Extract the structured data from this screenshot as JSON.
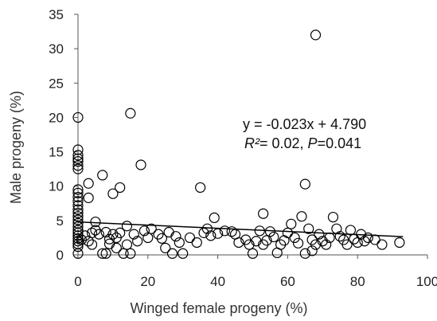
{
  "chart_data": {
    "type": "scatter",
    "title": "",
    "xlabel": "Winged female progeny (%)",
    "ylabel": "Male progeny (%)",
    "xlim": [
      0,
      100
    ],
    "ylim": [
      0,
      35
    ],
    "x_ticks": [
      0,
      20,
      40,
      60,
      80,
      100
    ],
    "y_ticks": [
      0,
      5,
      10,
      15,
      20,
      25,
      30,
      35
    ],
    "grid": false,
    "legend": "none",
    "marker": "open-circle",
    "marker_color": "#000000",
    "trendline": {
      "slope": -0.023,
      "intercept": 4.79,
      "x_range": [
        0,
        93
      ]
    },
    "annotation": {
      "equation": "y = -0.023x + 4.790",
      "r2_label": "R²",
      "r2_value": "= 0.02,",
      "p_label": "P",
      "p_value": "=0.041"
    },
    "points": [
      [
        0,
        20
      ],
      [
        0,
        15.3
      ],
      [
        0,
        14.5
      ],
      [
        0,
        14.0
      ],
      [
        0,
        13.6
      ],
      [
        0,
        13.0
      ],
      [
        0,
        12.5
      ],
      [
        0,
        9.5
      ],
      [
        0,
        9.0
      ],
      [
        0,
        8.4
      ],
      [
        0,
        7.8
      ],
      [
        0,
        7.2
      ],
      [
        0,
        6.6
      ],
      [
        0,
        6.1
      ],
      [
        0,
        5.6
      ],
      [
        0,
        5.1
      ],
      [
        0,
        4.6
      ],
      [
        0,
        4.1
      ],
      [
        0,
        3.6
      ],
      [
        0,
        3.2
      ],
      [
        0,
        2.8
      ],
      [
        0,
        2.4
      ],
      [
        0,
        2.0
      ],
      [
        0,
        1.6
      ],
      [
        0,
        1.2
      ],
      [
        0,
        0.2
      ],
      [
        1,
        2.2
      ],
      [
        2,
        2.8
      ],
      [
        3,
        2.0
      ],
      [
        3,
        8.3
      ],
      [
        3,
        10.4
      ],
      [
        4,
        1.5
      ],
      [
        4,
        3.2
      ],
      [
        5,
        4.8
      ],
      [
        5,
        3.6
      ],
      [
        6,
        3.0
      ],
      [
        7,
        11.6
      ],
      [
        7,
        0.2
      ],
      [
        8,
        3.3
      ],
      [
        8,
        0.2
      ],
      [
        9,
        2.3
      ],
      [
        9,
        1.6
      ],
      [
        10,
        8.9
      ],
      [
        10,
        3.0
      ],
      [
        11,
        2.5
      ],
      [
        11,
        1.0
      ],
      [
        12,
        9.8
      ],
      [
        12,
        3.2
      ],
      [
        13,
        0.2
      ],
      [
        14,
        4.2
      ],
      [
        14,
        1.5
      ],
      [
        15,
        20.6
      ],
      [
        15,
        0.2
      ],
      [
        16,
        3.0
      ],
      [
        17,
        2.0
      ],
      [
        18,
        13.1
      ],
      [
        19,
        3.5
      ],
      [
        20,
        2.5
      ],
      [
        21,
        3.8
      ],
      [
        23,
        3.0
      ],
      [
        24,
        2.4
      ],
      [
        25,
        1.0
      ],
      [
        26,
        3.3
      ],
      [
        27,
        0.2
      ],
      [
        28,
        2.7
      ],
      [
        29,
        1.8
      ],
      [
        30,
        0.2
      ],
      [
        32,
        2.5
      ],
      [
        34,
        1.8
      ],
      [
        35,
        9.8
      ],
      [
        36,
        3.2
      ],
      [
        37,
        3.8
      ],
      [
        38,
        2.8
      ],
      [
        39,
        5.4
      ],
      [
        40,
        3.1
      ],
      [
        42,
        3.5
      ],
      [
        44,
        3.4
      ],
      [
        45,
        3.0
      ],
      [
        46,
        1.8
      ],
      [
        48,
        2.2
      ],
      [
        49,
        1.5
      ],
      [
        50,
        0.2
      ],
      [
        51,
        2.0
      ],
      [
        52,
        3.5
      ],
      [
        53,
        6.0
      ],
      [
        53,
        1.5
      ],
      [
        54,
        2.1
      ],
      [
        55,
        3.4
      ],
      [
        56,
        2.6
      ],
      [
        57,
        0.3
      ],
      [
        58,
        1.5
      ],
      [
        59,
        2.1
      ],
      [
        60,
        3.2
      ],
      [
        61,
        4.5
      ],
      [
        62,
        2.5
      ],
      [
        63,
        1.7
      ],
      [
        64,
        5.6
      ],
      [
        65,
        10.3
      ],
      [
        65,
        0.2
      ],
      [
        66,
        3.8
      ],
      [
        67,
        2.2
      ],
      [
        67,
        0.6
      ],
      [
        68,
        32
      ],
      [
        68,
        1.5
      ],
      [
        69,
        3.0
      ],
      [
        70,
        2.0
      ],
      [
        71,
        1.5
      ],
      [
        72,
        2.5
      ],
      [
        73,
        5.5
      ],
      [
        74,
        3.8
      ],
      [
        75,
        2.7
      ],
      [
        76,
        2.2
      ],
      [
        77,
        1.5
      ],
      [
        78,
        3.6
      ],
      [
        79,
        2.3
      ],
      [
        80,
        1.8
      ],
      [
        81,
        3.0
      ],
      [
        82,
        2.0
      ],
      [
        83,
        2.5
      ],
      [
        85,
        2.2
      ],
      [
        87,
        1.5
      ],
      [
        92,
        1.8
      ]
    ]
  }
}
